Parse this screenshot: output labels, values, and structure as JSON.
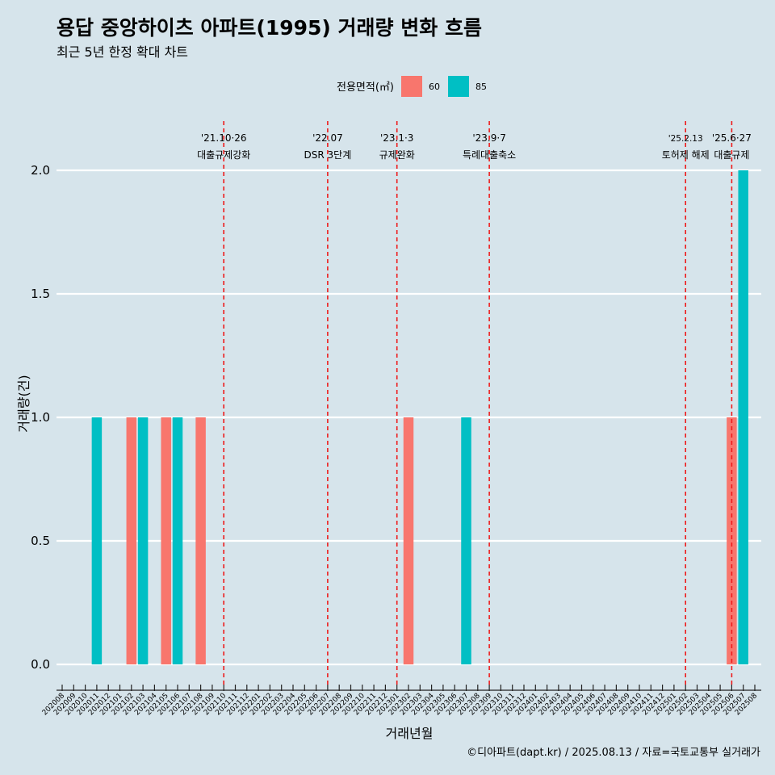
{
  "chart_data": {
    "type": "bar",
    "title": "용답 중앙하이츠 아파트(1995) 거래량 변화 흐름",
    "subtitle": "최근 5년 한정 확대 차트",
    "xlabel": "거래년월",
    "ylabel": "거래량(건)",
    "ylim": [
      0,
      2
    ],
    "yticks": [
      "0.0",
      "0.5",
      "1.0",
      "1.5",
      "2.0"
    ],
    "grid": "horizontal",
    "legend": {
      "title": "전용면적(㎡)",
      "position": "top"
    },
    "categories": [
      "202008",
      "202009",
      "202010",
      "202011",
      "202012",
      "202101",
      "202102",
      "202103",
      "202104",
      "202105",
      "202106",
      "202107",
      "202108",
      "202109",
      "202110",
      "202111",
      "202112",
      "202201",
      "202202",
      "202203",
      "202204",
      "202205",
      "202206",
      "202207",
      "202208",
      "202209",
      "202210",
      "202211",
      "202212",
      "202301",
      "202302",
      "202303",
      "202304",
      "202305",
      "202306",
      "202307",
      "202308",
      "202309",
      "202310",
      "202311",
      "202312",
      "202401",
      "202402",
      "202403",
      "202404",
      "202405",
      "202406",
      "202407",
      "202408",
      "202409",
      "202410",
      "202411",
      "202412",
      "202501",
      "202502",
      "202503",
      "202504",
      "202505",
      "202506",
      "202507",
      "202508"
    ],
    "series": [
      {
        "name": "60",
        "color": "#f8766d",
        "points": [
          {
            "x": "202102",
            "y": 1
          },
          {
            "x": "202105",
            "y": 1
          },
          {
            "x": "202108",
            "y": 1
          },
          {
            "x": "202302",
            "y": 1
          },
          {
            "x": "202506",
            "y": 1
          }
        ]
      },
      {
        "name": "85",
        "color": "#00bfc4",
        "points": [
          {
            "x": "202011",
            "y": 1
          },
          {
            "x": "202103",
            "y": 1
          },
          {
            "x": "202106",
            "y": 1
          },
          {
            "x": "202307",
            "y": 1
          },
          {
            "x": "202507",
            "y": 2
          }
        ]
      }
    ],
    "annotations": [
      {
        "x": "202110",
        "date": "'21.10·26",
        "label": "대출규제강화"
      },
      {
        "x": "202207",
        "date": "'22.07",
        "label": "DSR 3단계"
      },
      {
        "x": "202301",
        "date": "'23.1·3",
        "label": "규제완화"
      },
      {
        "x": "202309",
        "date": "'23.9·7",
        "label": "특례대출축소"
      },
      {
        "x": "202502",
        "date": "'25.2.13",
        "label": "토허제 해제",
        "small": true
      },
      {
        "x": "202506",
        "date": "'25.6·27",
        "label": "대출규제"
      }
    ],
    "caption": "©디아파트(dapt.kr) / 2025.08.13 / 자료=국토교통부 실거래가"
  }
}
